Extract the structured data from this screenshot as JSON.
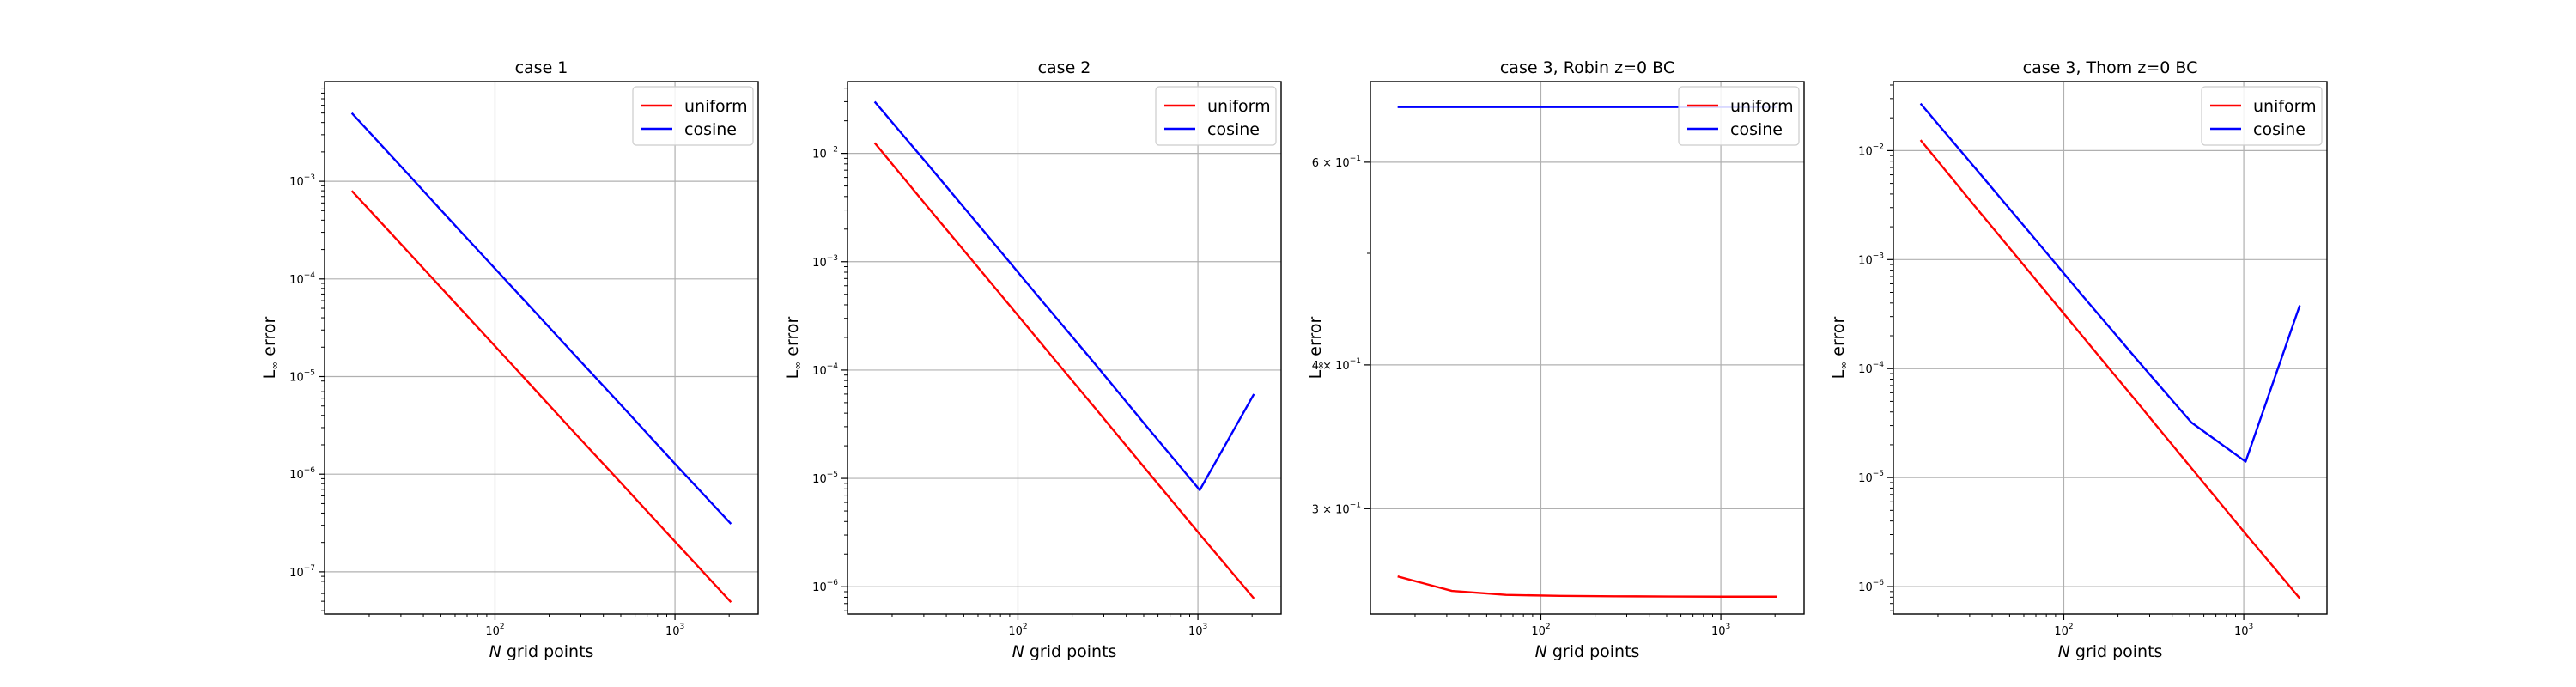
{
  "chart_data": [
    {
      "type": "line",
      "title": "case 1",
      "xlabel_italic": "N",
      "xlabel_rest": " grid points",
      "ylabel_main": "L",
      "ylabel_sub": "∞",
      "ylabel_rest": " error",
      "xscale": "log",
      "yscale": "log",
      "xlim": [
        11.3,
        2900
      ],
      "ylim": [
        3.7e-08,
        0.0105
      ],
      "xticks": [
        {
          "value": 100,
          "base": "10",
          "exp": "2"
        },
        {
          "value": 1000,
          "base": "10",
          "exp": "3"
        }
      ],
      "yticks": [
        {
          "value": 1e-07,
          "base": "10",
          "exp": "−7"
        },
        {
          "value": 1e-06,
          "base": "10",
          "exp": "−6"
        },
        {
          "value": 1e-05,
          "base": "10",
          "exp": "−5"
        },
        {
          "value": 0.0001,
          "base": "10",
          "exp": "−4"
        },
        {
          "value": 0.001,
          "base": "10",
          "exp": "−3"
        }
      ],
      "grid": true,
      "legend": "upper right",
      "series": [
        {
          "name": "uniform",
          "color": "#ff0000",
          "x": [
            16,
            32,
            64,
            128,
            256,
            512,
            1024,
            2048
          ],
          "y": [
            0.0008,
            0.0002,
            5e-05,
            1.25e-05,
            3.1e-06,
            7.8e-07,
            1.95e-07,
            4.9e-08
          ]
        },
        {
          "name": "cosine",
          "color": "#0000ff",
          "x": [
            16,
            32,
            64,
            128,
            256,
            512,
            1024,
            2048
          ],
          "y": [
            0.005,
            0.00125,
            0.00031,
            7.8e-05,
            1.95e-05,
            4.9e-06,
            1.22e-06,
            3.1e-07
          ]
        }
      ]
    },
    {
      "type": "line",
      "title": "case 2",
      "xlabel_italic": "N",
      "xlabel_rest": " grid points",
      "ylabel_main": "L",
      "ylabel_sub": "∞",
      "ylabel_rest": " error",
      "xscale": "log",
      "yscale": "log",
      "xlim": [
        11.3,
        2900
      ],
      "ylim": [
        5.6e-07,
        0.046
      ],
      "xticks": [
        {
          "value": 100,
          "base": "10",
          "exp": "2"
        },
        {
          "value": 1000,
          "base": "10",
          "exp": "3"
        }
      ],
      "yticks": [
        {
          "value": 1e-06,
          "base": "10",
          "exp": "−6"
        },
        {
          "value": 1e-05,
          "base": "10",
          "exp": "−5"
        },
        {
          "value": 0.0001,
          "base": "10",
          "exp": "−4"
        },
        {
          "value": 0.001,
          "base": "10",
          "exp": "−3"
        },
        {
          "value": 0.01,
          "base": "10",
          "exp": "−2"
        }
      ],
      "grid": true,
      "legend": "upper right",
      "series": [
        {
          "name": "uniform",
          "color": "#ff0000",
          "x": [
            16,
            32,
            64,
            128,
            256,
            512,
            1024,
            2048
          ],
          "y": [
            0.0125,
            0.0031,
            0.00078,
            0.000195,
            4.9e-05,
            1.22e-05,
            3.05e-06,
            7.8e-07
          ]
        },
        {
          "name": "cosine",
          "color": "#0000ff",
          "x": [
            16,
            32,
            64,
            128,
            256,
            512,
            1024,
            2048
          ],
          "y": [
            0.03,
            0.0077,
            0.00195,
            0.00049,
            0.000125,
            3.1e-05,
            7.8e-06,
            6e-05
          ]
        }
      ]
    },
    {
      "type": "line",
      "title": "case 3, Robin z=0 BC",
      "xlabel_italic": "N",
      "xlabel_rest": " grid points",
      "ylabel_main": "L",
      "ylabel_sub": "∞",
      "ylabel_rest": " error",
      "xscale": "log",
      "yscale": "log",
      "xlim": [
        11.3,
        2900
      ],
      "ylim": [
        0.243,
        0.705
      ],
      "xticks": [
        {
          "value": 100,
          "base": "10",
          "exp": "2"
        },
        {
          "value": 1000,
          "base": "10",
          "exp": "3"
        }
      ],
      "yticks": [
        {
          "value": 0.3,
          "base": "3 × 10",
          "exp": "−1"
        },
        {
          "value": 0.4,
          "base": "4 × 10",
          "exp": "−1"
        },
        {
          "value": 0.6,
          "base": "6 × 10",
          "exp": "−1"
        }
      ],
      "minor_yticks": [
        0.5
      ],
      "grid": true,
      "legend": "upper right",
      "series": [
        {
          "name": "uniform",
          "color": "#ff0000",
          "x": [
            16,
            32,
            64,
            128,
            256,
            512,
            1024,
            2048
          ],
          "y": [
            0.262,
            0.2545,
            0.2525,
            0.252,
            0.2518,
            0.2517,
            0.2516,
            0.2516
          ]
        },
        {
          "name": "cosine",
          "color": "#0000ff",
          "x": [
            16,
            32,
            64,
            128,
            256,
            512,
            1024,
            2048
          ],
          "y": [
            0.67,
            0.67,
            0.67,
            0.67,
            0.67,
            0.67,
            0.67,
            0.67
          ]
        }
      ]
    },
    {
      "type": "line",
      "title": "case 3, Thom z=0 BC",
      "xlabel_italic": "N",
      "xlabel_rest": " grid points",
      "ylabel_main": "L",
      "ylabel_sub": "∞",
      "ylabel_rest": " error",
      "xscale": "log",
      "yscale": "log",
      "xlim": [
        11.3,
        2900
      ],
      "ylim": [
        5.6e-07,
        0.043
      ],
      "xticks": [
        {
          "value": 100,
          "base": "10",
          "exp": "2"
        },
        {
          "value": 1000,
          "base": "10",
          "exp": "3"
        }
      ],
      "yticks": [
        {
          "value": 1e-06,
          "base": "10",
          "exp": "−6"
        },
        {
          "value": 1e-05,
          "base": "10",
          "exp": "−5"
        },
        {
          "value": 0.0001,
          "base": "10",
          "exp": "−4"
        },
        {
          "value": 0.001,
          "base": "10",
          "exp": "−3"
        },
        {
          "value": 0.01,
          "base": "10",
          "exp": "−2"
        }
      ],
      "grid": true,
      "legend": "upper right",
      "series": [
        {
          "name": "uniform",
          "color": "#ff0000",
          "x": [
            16,
            32,
            64,
            128,
            256,
            512,
            1024,
            2048
          ],
          "y": [
            0.0125,
            0.0031,
            0.00078,
            0.000195,
            4.9e-05,
            1.22e-05,
            3.05e-06,
            7.8e-07
          ]
        },
        {
          "name": "cosine",
          "color": "#0000ff",
          "x": [
            16,
            32,
            64,
            128,
            256,
            512,
            1024,
            2048
          ],
          "y": [
            0.027,
            0.007,
            0.0018,
            0.00046,
            0.00012,
            3.2e-05,
            1.4e-05,
            0.00038
          ]
        }
      ]
    }
  ]
}
